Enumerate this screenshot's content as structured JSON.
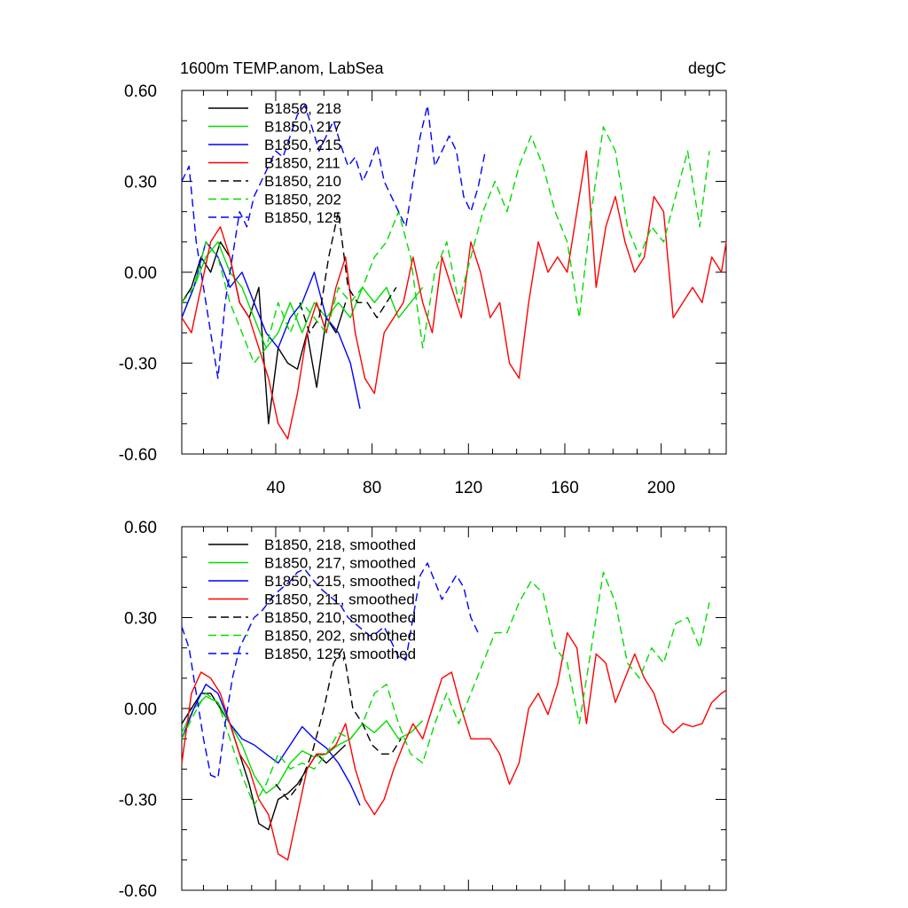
{
  "chart_data": [
    {
      "type": "line",
      "title": "1600m TEMP.anom, LabSea",
      "units": "degC",
      "xlim": [
        1,
        227
      ],
      "ylim": [
        -0.6,
        0.6
      ],
      "xticks": [
        40,
        80,
        120,
        160,
        200
      ],
      "xtick_labels": [
        "40",
        "80",
        "120",
        "160",
        "200"
      ],
      "yticks": [
        -0.6,
        -0.3,
        0.0,
        0.3,
        0.6
      ],
      "ytick_labels": [
        "-0.60",
        "-0.30",
        "0.00",
        "0.30",
        "0.60"
      ],
      "legend_position": "top-left",
      "series": [
        {
          "name": "B1850, 218",
          "color": "#000000",
          "dash": "solid",
          "x": [
            1,
            5,
            9,
            13,
            17,
            21,
            25,
            29,
            33,
            37,
            41,
            45,
            49,
            53,
            57,
            61,
            65,
            69
          ],
          "y": [
            -0.1,
            -0.05,
            0.05,
            0.0,
            0.1,
            0.05,
            -0.1,
            -0.15,
            -0.05,
            -0.5,
            -0.25,
            -0.3,
            -0.32,
            -0.2,
            -0.38,
            -0.15,
            -0.2,
            -0.1
          ]
        },
        {
          "name": "B1850, 217",
          "color": "#00dd00",
          "dash": "solid",
          "x": [
            1,
            6,
            11,
            16,
            21,
            26,
            31,
            36,
            41,
            46,
            51,
            56,
            61,
            66,
            71,
            76,
            81,
            86,
            91,
            96,
            101
          ],
          "y": [
            -0.15,
            -0.05,
            0.05,
            0.1,
            0.0,
            -0.05,
            -0.15,
            -0.25,
            -0.2,
            -0.1,
            -0.2,
            -0.1,
            -0.15,
            -0.1,
            -0.15,
            -0.05,
            -0.1,
            -0.05,
            -0.15,
            -0.1,
            -0.05
          ]
        },
        {
          "name": "B1850, 215",
          "color": "#0000ff",
          "dash": "solid",
          "x": [
            1,
            6,
            11,
            16,
            21,
            26,
            31,
            36,
            41,
            46,
            51,
            56,
            61,
            66,
            71,
            75
          ],
          "y": [
            -0.15,
            -0.05,
            0.1,
            0.05,
            -0.05,
            0.0,
            -0.1,
            -0.2,
            -0.25,
            -0.15,
            -0.1,
            0.0,
            -0.15,
            -0.2,
            -0.3,
            -0.45
          ]
        },
        {
          "name": "B1850, 211",
          "color": "#ff0000",
          "dash": "solid",
          "x": [
            1,
            5,
            9,
            13,
            17,
            21,
            25,
            29,
            33,
            37,
            41,
            45,
            49,
            53,
            57,
            61,
            65,
            69,
            73,
            77,
            81,
            85,
            89,
            93,
            97,
            101,
            105,
            109,
            113,
            117,
            121,
            125,
            129,
            133,
            137,
            141,
            145,
            149,
            153,
            157,
            161,
            165,
            169,
            173,
            177,
            181,
            185,
            189,
            193,
            197,
            201,
            205,
            209,
            213,
            217,
            221,
            225,
            227
          ],
          "y": [
            -0.15,
            -0.2,
            -0.05,
            0.1,
            0.15,
            0.05,
            -0.1,
            -0.15,
            -0.25,
            -0.35,
            -0.5,
            -0.55,
            -0.4,
            -0.2,
            -0.1,
            -0.2,
            -0.05,
            0.05,
            -0.2,
            -0.35,
            -0.4,
            -0.2,
            -0.15,
            -0.1,
            0.05,
            -0.1,
            -0.2,
            0.05,
            -0.05,
            -0.15,
            0.1,
            0.0,
            -0.15,
            -0.1,
            -0.3,
            -0.35,
            -0.1,
            0.1,
            0.0,
            0.05,
            0.0,
            0.2,
            0.4,
            -0.05,
            0.15,
            0.25,
            0.1,
            0.0,
            0.05,
            0.25,
            0.2,
            -0.15,
            -0.1,
            -0.05,
            -0.1,
            0.05,
            0.0,
            0.1
          ]
        },
        {
          "name": "B1850, 210",
          "color": "#000000",
          "dash": "dash",
          "x": [
            50,
            54,
            58,
            62,
            66,
            70,
            74,
            78,
            82,
            86,
            90
          ],
          "y": [
            -0.1,
            -0.2,
            -0.15,
            0.05,
            0.2,
            -0.05,
            -0.1,
            -0.1,
            -0.15,
            -0.1,
            -0.05
          ]
        },
        {
          "name": "B1850, 202",
          "color": "#00dd00",
          "dash": "dash",
          "x": [
            1,
            6,
            11,
            16,
            21,
            26,
            31,
            36,
            41,
            46,
            51,
            56,
            61,
            66,
            71,
            76,
            81,
            86,
            91,
            96,
            101,
            106,
            111,
            116,
            121,
            126,
            131,
            136,
            141,
            146,
            151,
            156,
            161,
            166,
            171,
            176,
            181,
            186,
            191,
            196,
            201,
            206,
            211,
            216,
            220
          ],
          "y": [
            -0.1,
            -0.05,
            0.1,
            0.05,
            -0.1,
            -0.2,
            -0.3,
            -0.25,
            -0.1,
            -0.2,
            -0.1,
            -0.15,
            -0.2,
            -0.05,
            -0.1,
            -0.05,
            0.05,
            0.1,
            0.2,
            0.05,
            -0.25,
            0.0,
            0.1,
            -0.1,
            0.05,
            0.2,
            0.3,
            0.2,
            0.35,
            0.45,
            0.35,
            0.2,
            0.1,
            -0.15,
            0.2,
            0.48,
            0.4,
            0.15,
            0.05,
            0.15,
            0.1,
            0.25,
            0.4,
            0.15,
            0.4
          ]
        },
        {
          "name": "B1850, 125",
          "color": "#0000ff",
          "dash": "dash",
          "x": [
            1,
            4,
            7,
            10,
            13,
            16,
            19,
            22,
            25,
            28,
            31,
            34,
            37,
            40,
            43,
            46,
            49,
            52,
            55,
            58,
            61,
            64,
            67,
            70,
            73,
            76,
            79,
            82,
            85,
            88,
            91,
            94,
            97,
            100,
            103,
            106,
            109,
            112,
            115,
            118,
            121,
            124,
            127
          ],
          "y": [
            0.3,
            0.35,
            0.1,
            -0.05,
            -0.2,
            -0.35,
            -0.1,
            0.05,
            0.2,
            0.15,
            0.25,
            0.3,
            0.35,
            0.4,
            0.38,
            0.45,
            0.52,
            0.55,
            0.48,
            0.4,
            0.45,
            0.5,
            0.42,
            0.35,
            0.38,
            0.3,
            0.35,
            0.42,
            0.3,
            0.25,
            0.2,
            0.15,
            0.3,
            0.45,
            0.55,
            0.35,
            0.4,
            0.45,
            0.4,
            0.25,
            0.2,
            0.28,
            0.4
          ]
        }
      ]
    },
    {
      "type": "line",
      "title": "",
      "xlim": [
        1,
        227
      ],
      "ylim": [
        -0.6,
        0.6
      ],
      "yticks": [
        -0.6,
        -0.3,
        0.0,
        0.3,
        0.6
      ],
      "ytick_labels": [
        "-0.60",
        "-0.30",
        "0.00",
        "0.30",
        "0.60"
      ],
      "legend_position": "top-left",
      "series": [
        {
          "name": "B1850, 218, smoothed",
          "color": "#000000",
          "dash": "solid",
          "x": [
            1,
            5,
            9,
            13,
            17,
            21,
            25,
            29,
            33,
            37,
            41,
            45,
            49,
            53,
            57,
            61,
            65,
            69
          ],
          "y": [
            -0.05,
            0.0,
            0.05,
            0.05,
            0.0,
            -0.05,
            -0.15,
            -0.25,
            -0.38,
            -0.4,
            -0.3,
            -0.28,
            -0.25,
            -0.2,
            -0.15,
            -0.18,
            -0.15,
            -0.12
          ]
        },
        {
          "name": "B1850, 217, smoothed",
          "color": "#00dd00",
          "dash": "solid",
          "x": [
            1,
            6,
            11,
            16,
            21,
            26,
            31,
            36,
            41,
            46,
            51,
            56,
            61,
            66,
            71,
            76,
            81,
            86,
            91,
            96,
            101
          ],
          "y": [
            -0.08,
            0.0,
            0.04,
            0.02,
            -0.05,
            -0.12,
            -0.22,
            -0.28,
            -0.25,
            -0.18,
            -0.14,
            -0.16,
            -0.15,
            -0.12,
            -0.1,
            -0.05,
            -0.08,
            -0.04,
            -0.1,
            -0.08,
            -0.04
          ]
        },
        {
          "name": "B1850, 215, smoothed",
          "color": "#0000ff",
          "dash": "solid",
          "x": [
            1,
            6,
            11,
            16,
            21,
            26,
            31,
            36,
            41,
            46,
            51,
            56,
            61,
            66,
            71,
            75
          ],
          "y": [
            -0.1,
            0.0,
            0.08,
            0.05,
            -0.05,
            -0.1,
            -0.12,
            -0.15,
            -0.18,
            -0.12,
            -0.06,
            -0.1,
            -0.13,
            -0.18,
            -0.25,
            -0.32
          ]
        },
        {
          "name": "B1850, 211, smoothed",
          "color": "#ff0000",
          "dash": "solid",
          "x": [
            1,
            5,
            9,
            13,
            17,
            21,
            25,
            29,
            33,
            37,
            41,
            45,
            49,
            53,
            57,
            61,
            65,
            69,
            73,
            77,
            81,
            85,
            89,
            93,
            97,
            101,
            105,
            109,
            113,
            117,
            121,
            125,
            129,
            133,
            137,
            141,
            145,
            149,
            153,
            157,
            161,
            165,
            169,
            173,
            177,
            181,
            185,
            189,
            193,
            197,
            201,
            205,
            209,
            213,
            217,
            221,
            225,
            227
          ],
          "y": [
            -0.18,
            0.05,
            0.12,
            0.1,
            0.05,
            -0.05,
            -0.15,
            -0.2,
            -0.3,
            -0.35,
            -0.48,
            -0.5,
            -0.35,
            -0.2,
            -0.15,
            -0.15,
            -0.12,
            -0.05,
            -0.2,
            -0.3,
            -0.35,
            -0.3,
            -0.2,
            -0.12,
            -0.05,
            -0.1,
            0.0,
            0.1,
            0.12,
            0.0,
            -0.1,
            -0.1,
            -0.1,
            -0.15,
            -0.25,
            -0.18,
            0.0,
            0.05,
            -0.02,
            0.08,
            0.25,
            0.2,
            -0.05,
            0.18,
            0.15,
            0.02,
            0.1,
            0.18,
            0.1,
            0.05,
            -0.05,
            -0.08,
            -0.05,
            -0.06,
            -0.05,
            0.02,
            0.05,
            0.06
          ]
        },
        {
          "name": "B1850, 210, smoothed",
          "color": "#000000",
          "dash": "dash",
          "x": [
            40,
            45,
            50,
            55,
            60,
            64,
            68,
            72,
            76,
            80,
            84,
            88,
            92
          ],
          "y": [
            -0.25,
            -0.3,
            -0.25,
            -0.15,
            0.0,
            0.15,
            0.2,
            0.0,
            -0.05,
            -0.12,
            -0.15,
            -0.15,
            -0.1
          ]
        },
        {
          "name": "B1850, 202, smoothed",
          "color": "#00dd00",
          "dash": "dash",
          "x": [
            1,
            6,
            11,
            16,
            21,
            26,
            31,
            36,
            41,
            46,
            51,
            56,
            61,
            66,
            71,
            76,
            81,
            86,
            91,
            96,
            101,
            106,
            111,
            116,
            121,
            126,
            131,
            136,
            141,
            146,
            151,
            156,
            161,
            166,
            171,
            176,
            181,
            186,
            191,
            196,
            201,
            206,
            211,
            216,
            220
          ],
          "y": [
            -0.1,
            -0.02,
            0.05,
            0.02,
            -0.1,
            -0.22,
            -0.32,
            -0.25,
            -0.15,
            -0.2,
            -0.18,
            -0.2,
            -0.15,
            -0.08,
            -0.1,
            -0.05,
            0.05,
            0.08,
            -0.05,
            -0.15,
            -0.18,
            -0.05,
            0.05,
            -0.05,
            0.05,
            0.15,
            0.25,
            0.25,
            0.35,
            0.42,
            0.38,
            0.2,
            0.15,
            -0.05,
            0.2,
            0.45,
            0.35,
            0.15,
            0.1,
            0.2,
            0.15,
            0.28,
            0.3,
            0.2,
            0.35
          ]
        },
        {
          "name": "B1850, 125, smoothed",
          "color": "#0000ff",
          "dash": "dash",
          "x": [
            1,
            4,
            7,
            10,
            13,
            16,
            19,
            22,
            25,
            28,
            31,
            34,
            37,
            40,
            43,
            46,
            49,
            52,
            55,
            58,
            61,
            64,
            67,
            70,
            73,
            76,
            79,
            82,
            85,
            88,
            91,
            94,
            97,
            100,
            103,
            106,
            109,
            112,
            115,
            118,
            121,
            124
          ],
          "y": [
            0.27,
            0.2,
            0.05,
            -0.1,
            -0.22,
            -0.23,
            -0.05,
            0.1,
            0.2,
            0.25,
            0.3,
            0.32,
            0.35,
            0.38,
            0.4,
            0.42,
            0.45,
            0.46,
            0.43,
            0.4,
            0.38,
            0.36,
            0.34,
            0.3,
            0.28,
            0.26,
            0.24,
            0.25,
            0.27,
            0.22,
            0.17,
            0.16,
            0.3,
            0.44,
            0.48,
            0.42,
            0.36,
            0.4,
            0.44,
            0.4,
            0.3,
            0.25
          ]
        }
      ]
    }
  ]
}
